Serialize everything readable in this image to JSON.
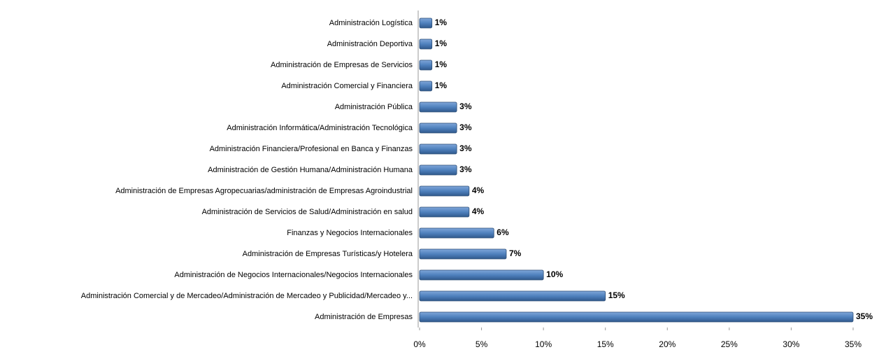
{
  "chart_data": {
    "type": "hbar",
    "categories": [
      "Administración Logística",
      "Administración Deportiva",
      "Administración de Empresas de Servicios",
      "Administración Comercial y Financiera",
      "Administración Pública",
      "Administración Informática/Administración Tecnológica",
      "Administración Financiera/Profesional en Banca y Finanzas",
      "Administración de Gestión Humana/Administración Humana",
      "Administración de Empresas Agropecuarias/administración de Empresas Agroindustrial",
      "Administración de Servicios de Salud/Administración en salud",
      "Finanzas y Negocios Internacionales",
      "Administración de Empresas Turísticas/y Hotelera",
      "Administración de Negocios Internacionales/Negocios Internacionales",
      "Administración Comercial y de Mercadeo/Administración de Mercadeo y Publicidad/Mercadeo y...",
      "Administración de Empresas"
    ],
    "values": [
      1,
      1,
      1,
      1,
      3,
      3,
      3,
      3,
      4,
      4,
      6,
      7,
      10,
      15,
      35
    ],
    "value_labels": [
      "1%",
      "1%",
      "1%",
      "1%",
      "3%",
      "3%",
      "3%",
      "3%",
      "4%",
      "4%",
      "6%",
      "7%",
      "10%",
      "15%",
      "35%"
    ],
    "color": "#4f81bd",
    "xlim": [
      0,
      35
    ],
    "xticks": [
      {
        "value": 0,
        "label": "0%"
      },
      {
        "value": 5,
        "label": "5%"
      },
      {
        "value": 10,
        "label": "10%"
      },
      {
        "value": 15,
        "label": "15%"
      },
      {
        "value": 20,
        "label": "20%"
      },
      {
        "value": 25,
        "label": "25%"
      },
      {
        "value": 30,
        "label": "30%"
      },
      {
        "value": 35,
        "label": "35%"
      }
    ]
  }
}
